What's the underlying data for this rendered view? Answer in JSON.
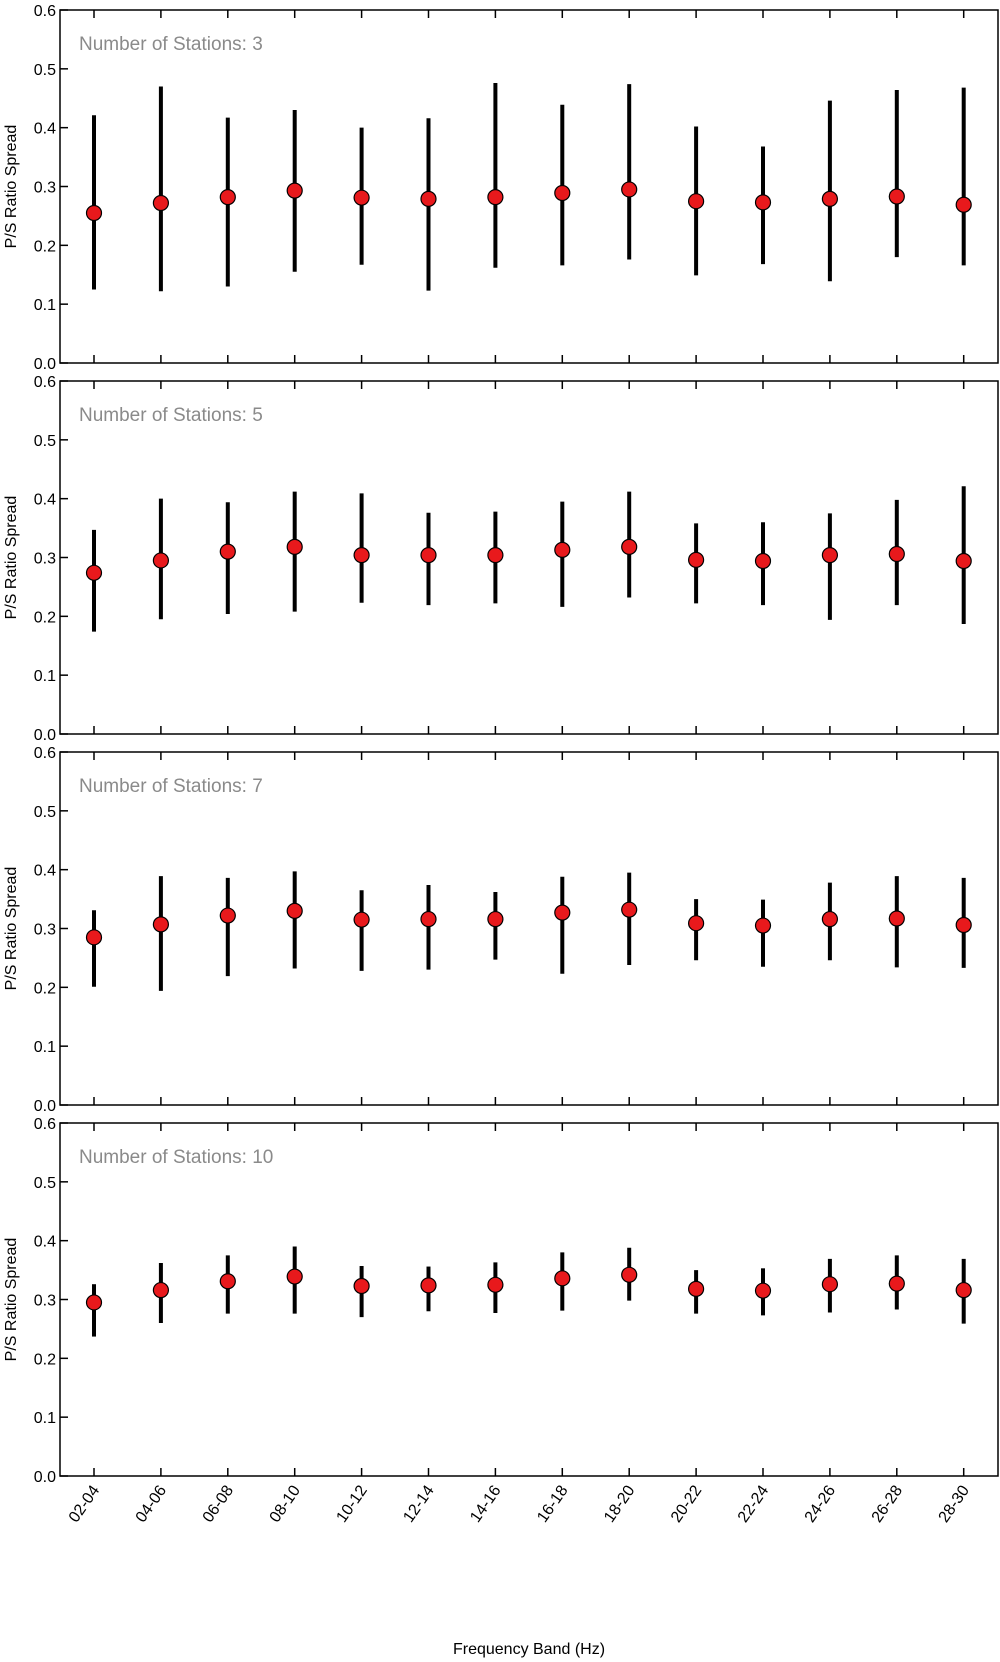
{
  "chart_data": {
    "type": "scatter",
    "xlabel": "Frequency Band (Hz)",
    "categories": [
      "02-04",
      "04-06",
      "06-08",
      "08-10",
      "10-12",
      "12-14",
      "14-16",
      "16-18",
      "18-20",
      "20-22",
      "22-24",
      "24-26",
      "26-28",
      "28-30"
    ],
    "ylabel": "P/S Ratio Spread",
    "ylim": [
      0,
      0.6
    ],
    "yticks": [
      "0.0",
      "0.1",
      "0.2",
      "0.3",
      "0.4",
      "0.5",
      "0.6"
    ],
    "marker_color": "#e8191c",
    "errorbar_color": "#000000",
    "annotation_color": "#8a8a8a",
    "panels": [
      {
        "annotation": "Number of Stations: 3",
        "mean": [
          0.255,
          0.272,
          0.282,
          0.293,
          0.281,
          0.279,
          0.282,
          0.289,
          0.295,
          0.275,
          0.273,
          0.279,
          0.283,
          0.269
        ],
        "lower": [
          0.125,
          0.122,
          0.13,
          0.155,
          0.167,
          0.123,
          0.162,
          0.166,
          0.176,
          0.149,
          0.168,
          0.139,
          0.18,
          0.166
        ],
        "upper": [
          0.421,
          0.47,
          0.417,
          0.43,
          0.4,
          0.416,
          0.476,
          0.439,
          0.474,
          0.402,
          0.368,
          0.446,
          0.464,
          0.468
        ]
      },
      {
        "annotation": "Number of Stations: 5",
        "mean": [
          0.274,
          0.295,
          0.31,
          0.318,
          0.304,
          0.304,
          0.304,
          0.313,
          0.318,
          0.296,
          0.294,
          0.304,
          0.306,
          0.294
        ],
        "lower": [
          0.174,
          0.195,
          0.204,
          0.208,
          0.223,
          0.219,
          0.222,
          0.216,
          0.232,
          0.222,
          0.219,
          0.194,
          0.219,
          0.187
        ],
        "upper": [
          0.347,
          0.4,
          0.394,
          0.412,
          0.409,
          0.376,
          0.378,
          0.395,
          0.412,
          0.358,
          0.36,
          0.375,
          0.398,
          0.421
        ]
      },
      {
        "annotation": "Number of Stations: 7",
        "mean": [
          0.285,
          0.307,
          0.322,
          0.33,
          0.315,
          0.316,
          0.316,
          0.327,
          0.332,
          0.309,
          0.305,
          0.316,
          0.317,
          0.306
        ],
        "lower": [
          0.201,
          0.194,
          0.219,
          0.232,
          0.228,
          0.23,
          0.247,
          0.223,
          0.238,
          0.246,
          0.235,
          0.246,
          0.234,
          0.233
        ],
        "upper": [
          0.331,
          0.389,
          0.386,
          0.397,
          0.365,
          0.374,
          0.362,
          0.388,
          0.395,
          0.35,
          0.349,
          0.378,
          0.389,
          0.386
        ]
      },
      {
        "annotation": "Number of Stations: 10",
        "mean": [
          0.295,
          0.316,
          0.331,
          0.339,
          0.323,
          0.324,
          0.325,
          0.336,
          0.342,
          0.318,
          0.315,
          0.326,
          0.327,
          0.316
        ],
        "lower": [
          0.237,
          0.26,
          0.276,
          0.276,
          0.27,
          0.28,
          0.277,
          0.281,
          0.298,
          0.276,
          0.273,
          0.278,
          0.283,
          0.259
        ],
        "upper": [
          0.326,
          0.362,
          0.375,
          0.39,
          0.357,
          0.356,
          0.363,
          0.38,
          0.388,
          0.35,
          0.353,
          0.369,
          0.375,
          0.369
        ]
      }
    ]
  }
}
